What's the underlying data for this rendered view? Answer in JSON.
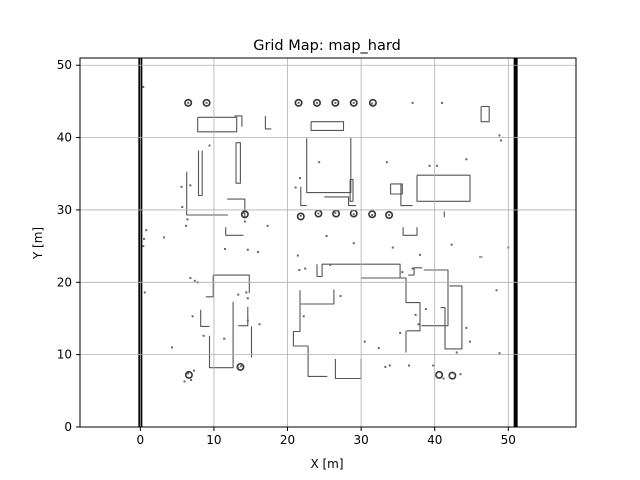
{
  "chart_data": {
    "type": "heatmap",
    "title": "Grid Map: map_hard",
    "xlabel": "X [m]",
    "ylabel": "Y [m]",
    "xlim": [
      -8.2,
      59.2
    ],
    "ylim": [
      0,
      51
    ],
    "x_ticks": [
      0,
      10,
      20,
      30,
      40,
      50
    ],
    "y_ticks": [
      0,
      10,
      20,
      30,
      40,
      50
    ],
    "x_tick_labels": [
      "0",
      "10",
      "20",
      "30",
      "40",
      "50"
    ],
    "y_tick_labels": [
      "0",
      "10",
      "20",
      "30",
      "40",
      "50"
    ],
    "grid": true,
    "map_extent": {
      "x": [
        0,
        51
      ],
      "y": [
        0,
        51
      ]
    },
    "boundary_walls_x": [
      0,
      51
    ],
    "colors": {
      "occupied": "#000000",
      "free": "#ffffff",
      "grid": "#b0b0b0"
    },
    "occupied_outlines": [
      [
        [
          7.8,
          42.8
        ],
        [
          7.8,
          40.8
        ],
        [
          13.1,
          40.8
        ],
        [
          13.1,
          42.8
        ],
        [
          7.8,
          42.8
        ]
      ],
      [
        [
          12.8,
          43.0
        ],
        [
          13.8,
          43.0
        ],
        [
          13.8,
          41.5
        ]
      ],
      [
        [
          17.0,
          43.0
        ],
        [
          17.0,
          41.2
        ],
        [
          17.8,
          41.2
        ]
      ],
      [
        [
          7.9,
          38.2
        ],
        [
          7.9,
          32.0
        ],
        [
          8.4,
          32.0
        ],
        [
          8.4,
          38.2
        ]
      ],
      [
        [
          13.0,
          39.3
        ],
        [
          13.6,
          39.3
        ],
        [
          13.6,
          33.7
        ],
        [
          13.0,
          33.7
        ],
        [
          13.0,
          39.3
        ]
      ],
      [
        [
          6.3,
          35.3
        ],
        [
          6.3,
          29.3
        ],
        [
          11.9,
          29.3
        ]
      ],
      [
        [
          11.8,
          31.5
        ],
        [
          14.2,
          31.5
        ],
        [
          14.2,
          28.8
        ]
      ],
      [
        [
          11.6,
          27.6
        ],
        [
          11.6,
          26.5
        ],
        [
          14.0,
          26.5
        ]
      ],
      [
        [
          23.2,
          42.2
        ],
        [
          27.6,
          42.2
        ],
        [
          27.6,
          41.0
        ],
        [
          23.2,
          41.0
        ],
        [
          23.2,
          42.2
        ]
      ],
      [
        [
          22.6,
          39.9
        ],
        [
          22.6,
          32.4
        ],
        [
          28.6,
          32.4
        ],
        [
          28.6,
          40.0
        ]
      ],
      [
        [
          21.8,
          33.2
        ],
        [
          21.8,
          30.6
        ],
        [
          22.6,
          30.6
        ]
      ],
      [
        [
          25.0,
          31.8
        ],
        [
          28.3,
          31.8
        ],
        [
          28.3,
          30.6
        ],
        [
          29.3,
          30.6
        ]
      ],
      [
        [
          28.5,
          34.2
        ],
        [
          28.5,
          31.2
        ],
        [
          28.9,
          31.2
        ],
        [
          28.9,
          34.2
        ],
        [
          28.5,
          34.2
        ]
      ],
      [
        [
          34.0,
          33.6
        ],
        [
          34.0,
          32.2
        ],
        [
          35.6,
          32.2
        ],
        [
          35.6,
          33.6
        ],
        [
          34.0,
          33.6
        ]
      ],
      [
        [
          35.4,
          33.6
        ],
        [
          35.4,
          30.6
        ],
        [
          37.0,
          30.6
        ]
      ],
      [
        [
          35.7,
          27.6
        ],
        [
          35.7,
          26.5
        ],
        [
          37.6,
          26.5
        ],
        [
          37.6,
          27.6
        ]
      ],
      [
        [
          37.6,
          34.8
        ],
        [
          44.8,
          34.8
        ],
        [
          44.8,
          31.2
        ],
        [
          37.6,
          31.2
        ],
        [
          37.6,
          34.8
        ]
      ],
      [
        [
          41.3,
          29.8
        ],
        [
          41.3,
          29.0
        ]
      ],
      [
        [
          46.3,
          44.3
        ],
        [
          47.4,
          44.3
        ],
        [
          47.4,
          42.2
        ],
        [
          46.3,
          42.2
        ],
        [
          46.3,
          44.3
        ]
      ],
      [
        [
          9.9,
          21.0
        ],
        [
          14.8,
          21.0
        ],
        [
          14.8,
          18.5
        ]
      ],
      [
        [
          8.9,
          18.0
        ],
        [
          9.9,
          18.0
        ],
        [
          9.9,
          21.0
        ]
      ],
      [
        [
          8.2,
          16.2
        ],
        [
          8.2,
          13.9
        ],
        [
          9.4,
          13.9
        ]
      ],
      [
        [
          12.6,
          17.3
        ],
        [
          12.6,
          8.2
        ],
        [
          9.4,
          8.2
        ],
        [
          9.4,
          12.6
        ]
      ],
      [
        [
          13.3,
          14.0
        ],
        [
          14.6,
          14.0
        ],
        [
          14.6,
          16.6
        ]
      ],
      [
        [
          15.1,
          13.9
        ],
        [
          15.1,
          9.6
        ]
      ],
      [
        [
          21.7,
          18.9
        ],
        [
          21.7,
          13.2
        ],
        [
          20.8,
          13.2
        ],
        [
          20.8,
          11.2
        ],
        [
          22.8,
          11.2
        ]
      ],
      [
        [
          22.8,
          11.2
        ],
        [
          22.8,
          7.0
        ],
        [
          25.4,
          7.0
        ]
      ],
      [
        [
          21.8,
          17.0
        ],
        [
          26.3,
          17.0
        ],
        [
          26.3,
          19.0
        ]
      ],
      [
        [
          26.5,
          9.4
        ],
        [
          26.5,
          6.7
        ],
        [
          30.0,
          6.7
        ],
        [
          30.0,
          9.4
        ]
      ],
      [
        [
          24.0,
          22.5
        ],
        [
          24.0,
          20.8
        ],
        [
          24.7,
          20.8
        ],
        [
          24.7,
          22.5
        ],
        [
          35.3,
          22.5
        ],
        [
          35.3,
          20.6
        ],
        [
          36.1,
          20.6
        ]
      ],
      [
        [
          30.0,
          20.6
        ],
        [
          36.1,
          20.6
        ],
        [
          36.1,
          17.2
        ],
        [
          38.0,
          17.2
        ],
        [
          38.0,
          13.3
        ],
        [
          36.2,
          13.3
        ]
      ],
      [
        [
          36.1,
          10.3
        ],
        [
          36.1,
          13.3
        ]
      ],
      [
        [
          36.4,
          21.0
        ],
        [
          37.2,
          21.0
        ],
        [
          37.2,
          22.0
        ],
        [
          38.3,
          22.0
        ]
      ],
      [
        [
          38.5,
          21.7
        ],
        [
          41.8,
          21.7
        ],
        [
          41.8,
          14.0
        ],
        [
          38.2,
          14.0
        ]
      ],
      [
        [
          40.8,
          16.5
        ],
        [
          41.4,
          16.5
        ],
        [
          41.4,
          10.8
        ],
        [
          43.7,
          10.8
        ],
        [
          43.7,
          19.5
        ],
        [
          42.0,
          19.5
        ]
      ],
      [
        [
          46.0,
          23.5
        ],
        [
          46.5,
          23.5
        ]
      ]
    ],
    "occupied_points": [
      [
        0.4,
        47.0
      ],
      [
        6.5,
        44.8
      ],
      [
        9.0,
        44.8
      ],
      [
        21.5,
        44.8
      ],
      [
        24.0,
        44.8
      ],
      [
        26.5,
        44.8
      ],
      [
        29.0,
        44.8
      ],
      [
        31.5,
        44.7
      ],
      [
        37.0,
        44.8
      ],
      [
        41.0,
        44.8
      ],
      [
        49.0,
        39.6
      ],
      [
        48.8,
        40.3
      ],
      [
        9.4,
        38.9
      ],
      [
        6.8,
        33.4
      ],
      [
        5.6,
        33.2
      ],
      [
        5.7,
        30.4
      ],
      [
        6.4,
        28.7
      ],
      [
        21.1,
        33.1
      ],
      [
        21.7,
        34.4
      ],
      [
        24.3,
        36.6
      ],
      [
        33.5,
        36.6
      ],
      [
        39.3,
        36.1
      ],
      [
        40.3,
        36.1
      ],
      [
        44.3,
        37.0
      ],
      [
        21.8,
        29.2
      ],
      [
        24.2,
        29.5
      ],
      [
        26.5,
        29.6
      ],
      [
        29.0,
        29.4
      ],
      [
        31.5,
        29.3
      ],
      [
        33.8,
        29.3
      ],
      [
        14.0,
        29.6
      ],
      [
        14.2,
        28.4
      ],
      [
        6.2,
        27.8
      ],
      [
        0.8,
        27.2
      ],
      [
        0.5,
        26.0
      ],
      [
        0.4,
        25.0
      ],
      [
        17.3,
        27.8
      ],
      [
        25.3,
        26.4
      ],
      [
        29.0,
        25.4
      ],
      [
        34.3,
        24.8
      ],
      [
        42.3,
        25.2
      ],
      [
        16.0,
        24.2
      ],
      [
        3.2,
        26.2
      ],
      [
        11.5,
        24.6
      ],
      [
        14.6,
        24.5
      ],
      [
        21.4,
        23.7
      ],
      [
        38.0,
        23.8
      ],
      [
        50.0,
        24.8
      ],
      [
        22.4,
        21.9
      ],
      [
        21.6,
        21.7
      ],
      [
        37.0,
        21.9
      ],
      [
        35.6,
        21.4
      ],
      [
        7.8,
        20.0
      ],
      [
        6.8,
        20.6
      ],
      [
        14.4,
        18.6
      ],
      [
        13.3,
        18.3
      ],
      [
        48.4,
        18.9
      ],
      [
        0.6,
        18.6
      ],
      [
        7.4,
        20.2
      ],
      [
        14.6,
        17.8
      ],
      [
        7.1,
        15.3
      ],
      [
        14.6,
        14.7
      ],
      [
        16.2,
        14.2
      ],
      [
        22.2,
        15.3
      ],
      [
        27.2,
        18.1
      ],
      [
        37.8,
        14.2
      ],
      [
        37.4,
        15.5
      ],
      [
        44.3,
        13.7
      ],
      [
        48.8,
        10.2
      ],
      [
        4.3,
        11.0
      ],
      [
        8.6,
        12.6
      ],
      [
        11.4,
        12.2
      ],
      [
        32.4,
        10.9
      ],
      [
        30.5,
        11.8
      ],
      [
        35.3,
        13.0
      ],
      [
        44.8,
        11.8
      ],
      [
        43.0,
        10.3
      ],
      [
        6.5,
        7.4
      ],
      [
        6.9,
        6.5
      ],
      [
        7.3,
        7.8
      ],
      [
        13.3,
        8.2
      ],
      [
        13.7,
        8.4
      ],
      [
        33.9,
        8.5
      ],
      [
        36.5,
        8.5
      ],
      [
        39.8,
        8.5
      ],
      [
        40.3,
        6.9
      ],
      [
        41.2,
        6.7
      ],
      [
        42.0,
        7.0
      ],
      [
        42.6,
        7.4
      ],
      [
        43.5,
        7.3
      ],
      [
        6.0,
        6.3
      ],
      [
        33.3,
        8.3
      ],
      [
        38.8,
        16.3
      ],
      [
        25.8,
        22.4
      ]
    ],
    "occupied_circles": [
      [
        6.5,
        44.8
      ],
      [
        9.0,
        44.8
      ],
      [
        21.5,
        44.8
      ],
      [
        24.0,
        44.8
      ],
      [
        26.5,
        44.8
      ],
      [
        29.0,
        44.8
      ],
      [
        31.6,
        44.8
      ],
      [
        21.8,
        29.1
      ],
      [
        24.2,
        29.5
      ],
      [
        26.6,
        29.5
      ],
      [
        29.0,
        29.5
      ],
      [
        31.5,
        29.4
      ],
      [
        33.8,
        29.3
      ],
      [
        14.2,
        29.4
      ],
      [
        6.6,
        7.2
      ],
      [
        13.6,
        8.3
      ],
      [
        40.6,
        7.2
      ],
      [
        42.4,
        7.1
      ]
    ]
  }
}
